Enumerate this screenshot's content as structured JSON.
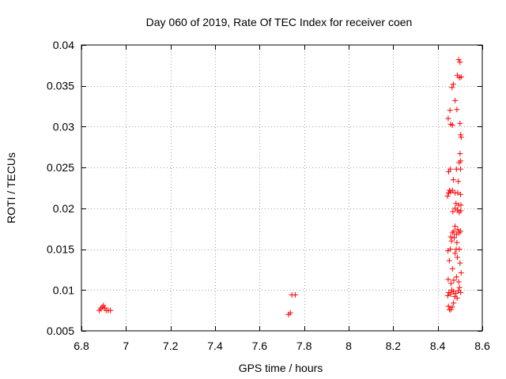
{
  "chart_data": {
    "type": "scatter",
    "title": "Day 060 of 2019, Rate Of TEC Index for receiver coen",
    "xlabel": "GPS time / hours",
    "ylabel": "ROTI / TECUs",
    "xlim": [
      6.8,
      8.6
    ],
    "ylim": [
      0.005,
      0.04
    ],
    "xticks": [
      6.8,
      7.0,
      7.2,
      7.4,
      7.6,
      7.8,
      8.0,
      8.2,
      8.4,
      8.6
    ],
    "xtick_labels": [
      "6.8",
      "7",
      "7.2",
      "7.4",
      "7.6",
      "7.8",
      "8",
      "8.2",
      "8.4",
      "8.6"
    ],
    "yticks": [
      0.005,
      0.01,
      0.015,
      0.02,
      0.025,
      0.03,
      0.035,
      0.04
    ],
    "ytick_labels": [
      "0.005",
      "0.01",
      "0.015",
      "0.02",
      "0.025",
      "0.03",
      "0.035",
      "0.04"
    ],
    "grid": true,
    "marker": "+",
    "marker_color": "#ff0000",
    "series": [
      {
        "name": "ROTI",
        "points": [
          [
            6.88,
            0.0075
          ],
          [
            6.887,
            0.0077
          ],
          [
            6.893,
            0.0079
          ],
          [
            6.899,
            0.0081
          ],
          [
            6.905,
            0.0078
          ],
          [
            6.911,
            0.0075
          ],
          [
            6.92,
            0.0075
          ],
          [
            6.93,
            0.0075
          ],
          [
            7.73,
            0.007
          ],
          [
            7.738,
            0.0072
          ],
          [
            7.745,
            0.0094
          ],
          [
            7.76,
            0.0094
          ],
          [
            8.448,
            0.008
          ],
          [
            8.453,
            0.0076
          ],
          [
            8.459,
            0.0076
          ],
          [
            8.465,
            0.0079
          ],
          [
            8.471,
            0.0084
          ],
          [
            8.445,
            0.0093
          ],
          [
            8.45,
            0.0097
          ],
          [
            8.458,
            0.0095
          ],
          [
            8.463,
            0.01
          ],
          [
            8.47,
            0.0098
          ],
          [
            8.476,
            0.0092
          ],
          [
            8.482,
            0.0096
          ],
          [
            8.487,
            0.009
          ],
          [
            8.492,
            0.0099
          ],
          [
            8.498,
            0.0103
          ],
          [
            8.503,
            0.0097
          ],
          [
            8.447,
            0.0113
          ],
          [
            8.46,
            0.0108
          ],
          [
            8.472,
            0.0112
          ],
          [
            8.484,
            0.0116
          ],
          [
            8.494,
            0.011
          ],
          [
            8.505,
            0.0121
          ],
          [
            8.452,
            0.0136
          ],
          [
            8.466,
            0.0126
          ],
          [
            8.478,
            0.0145
          ],
          [
            8.488,
            0.014
          ],
          [
            8.5,
            0.0133
          ],
          [
            8.446,
            0.0148
          ],
          [
            8.456,
            0.015
          ],
          [
            8.483,
            0.015
          ],
          [
            8.497,
            0.015
          ],
          [
            8.458,
            0.0165
          ],
          [
            8.466,
            0.017
          ],
          [
            8.472,
            0.0172
          ],
          [
            8.478,
            0.0178
          ],
          [
            8.484,
            0.0168
          ],
          [
            8.49,
            0.0174
          ],
          [
            8.496,
            0.017
          ],
          [
            8.502,
            0.0172
          ],
          [
            8.462,
            0.016
          ],
          [
            8.474,
            0.0164
          ],
          [
            8.486,
            0.0158
          ],
          [
            8.468,
            0.0196
          ],
          [
            8.478,
            0.02
          ],
          [
            8.488,
            0.0198
          ],
          [
            8.496,
            0.0195
          ],
          [
            8.503,
            0.0197
          ],
          [
            8.482,
            0.0206
          ],
          [
            8.494,
            0.0204
          ],
          [
            8.504,
            0.0204
          ],
          [
            8.444,
            0.0215
          ],
          [
            8.449,
            0.0219
          ],
          [
            8.453,
            0.0222
          ],
          [
            8.458,
            0.022
          ],
          [
            8.466,
            0.0222
          ],
          [
            8.478,
            0.0219
          ],
          [
            8.49,
            0.0219
          ],
          [
            8.502,
            0.0217
          ],
          [
            8.449,
            0.0245
          ],
          [
            8.456,
            0.0248
          ],
          [
            8.47,
            0.0235
          ],
          [
            8.484,
            0.0248
          ],
          [
            8.492,
            0.0233
          ],
          [
            8.502,
            0.0248
          ],
          [
            8.496,
            0.0256
          ],
          [
            8.503,
            0.0258
          ],
          [
            8.5,
            0.0267
          ],
          [
            8.505,
            0.0287
          ],
          [
            8.503,
            0.029
          ],
          [
            8.447,
            0.031
          ],
          [
            8.458,
            0.0303
          ],
          [
            8.466,
            0.0302
          ],
          [
            8.5,
            0.0304
          ],
          [
            8.455,
            0.032
          ],
          [
            8.478,
            0.0332
          ],
          [
            8.486,
            0.0321
          ],
          [
            8.464,
            0.0348
          ],
          [
            8.47,
            0.0352
          ],
          [
            8.488,
            0.0363
          ],
          [
            8.497,
            0.036
          ],
          [
            8.505,
            0.0361
          ],
          [
            8.494,
            0.0382
          ],
          [
            8.5,
            0.0379
          ]
        ]
      }
    ]
  }
}
